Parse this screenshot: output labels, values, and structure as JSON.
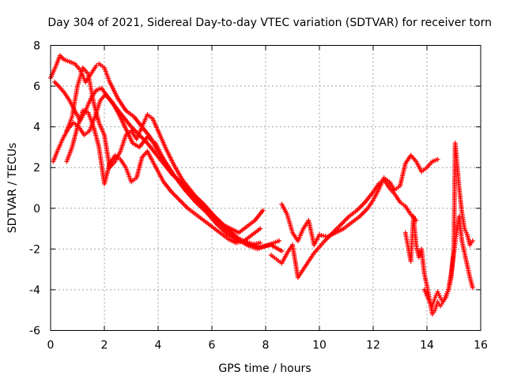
{
  "chart_data": {
    "type": "scatter",
    "title": "Day 304 of 2021, Sidereal Day-to-day VTEC variation (SDTVAR) for receiver torn",
    "xlabel": "GPS time / hours",
    "ylabel": "SDTVAR / TECUs",
    "xlim": [
      0,
      16
    ],
    "ylim": [
      -6,
      8
    ],
    "xticks": [
      "0",
      "2",
      "4",
      "6",
      "8",
      "10",
      "12",
      "14",
      "16"
    ],
    "yticks": [
      "-6",
      "-4",
      "-2",
      "0",
      "2",
      "4",
      "6",
      "8"
    ],
    "xtick_values": [
      0,
      2,
      4,
      6,
      8,
      10,
      12,
      14,
      16
    ],
    "ytick_values": [
      -6,
      -4,
      -2,
      0,
      2,
      4,
      6,
      8
    ],
    "grid": true,
    "marker": "+",
    "color": "#ff0000",
    "series": [
      {
        "name": "track-1",
        "x": [
          0.0,
          0.2,
          0.35,
          0.5,
          0.7,
          0.9,
          1.1,
          1.3,
          1.5,
          1.7,
          1.8,
          2.0,
          2.2,
          2.5,
          2.8,
          3.1,
          3.4,
          3.7,
          4.0,
          4.3,
          4.6,
          5.0,
          5.4,
          5.8,
          6.2,
          6.6,
          7.0,
          7.4,
          7.8,
          8.2,
          8.6
        ],
        "y": [
          6.4,
          7.0,
          7.5,
          7.3,
          7.2,
          7.1,
          6.8,
          6.2,
          6.6,
          7.0,
          7.1,
          6.9,
          6.2,
          5.4,
          4.8,
          4.5,
          4.0,
          3.5,
          2.8,
          2.2,
          1.6,
          1.0,
          0.5,
          -0.1,
          -0.6,
          -1.1,
          -1.5,
          -1.7,
          -1.9,
          -1.8,
          -2.1
        ]
      },
      {
        "name": "track-2",
        "x": [
          0.15,
          0.3,
          0.5,
          0.7,
          0.9,
          1.1,
          1.3,
          1.5,
          1.7,
          1.9,
          2.1,
          2.4,
          2.7,
          3.0,
          3.3,
          3.6,
          3.9,
          4.2,
          4.5,
          4.9,
          5.3,
          5.7,
          6.1,
          6.5,
          6.9,
          7.3,
          7.7,
          8.1,
          8.5
        ],
        "y": [
          6.2,
          6.0,
          5.7,
          5.3,
          4.8,
          4.3,
          4.8,
          5.4,
          5.8,
          5.9,
          5.5,
          5.0,
          4.5,
          4.0,
          3.6,
          3.2,
          2.7,
          2.2,
          1.7,
          1.2,
          0.7,
          0.2,
          -0.4,
          -0.9,
          -1.4,
          -1.8,
          -2.0,
          -1.8,
          -1.6
        ]
      },
      {
        "name": "track-3",
        "x": [
          0.1,
          0.25,
          0.45,
          0.65,
          0.85,
          1.05,
          1.25,
          1.45,
          1.65,
          1.85,
          2.05,
          2.3,
          2.55,
          2.8,
          3.05,
          3.3,
          3.6,
          3.9,
          4.2,
          4.6,
          5.0,
          5.4,
          5.8,
          6.2,
          6.6,
          7.0,
          7.4,
          7.8
        ],
        "y": [
          2.3,
          2.8,
          3.4,
          3.9,
          4.2,
          4.0,
          3.6,
          3.8,
          4.5,
          5.3,
          5.6,
          5.2,
          4.6,
          3.9,
          3.2,
          3.0,
          3.5,
          3.2,
          2.4,
          1.6,
          0.9,
          0.3,
          -0.2,
          -0.8,
          -1.3,
          -1.6,
          -1.8,
          -1.7
        ]
      },
      {
        "name": "track-4",
        "x": [
          0.6,
          0.8,
          1.0,
          1.2,
          1.4,
          1.6,
          1.8,
          2.0,
          2.2,
          2.4,
          2.6,
          2.8,
          3.0,
          3.2,
          3.4,
          3.6,
          3.8,
          4.0,
          4.3,
          4.6,
          4.9,
          5.2,
          5.5,
          5.8,
          6.1,
          6.4,
          6.7,
          7.0,
          7.3,
          7.6,
          7.9
        ],
        "y": [
          3.8,
          4.5,
          6.0,
          6.9,
          6.6,
          5.2,
          4.2,
          3.6,
          2.0,
          2.3,
          2.8,
          3.6,
          3.8,
          3.4,
          4.0,
          4.6,
          4.4,
          3.8,
          2.9,
          2.1,
          1.4,
          0.9,
          0.4,
          0.0,
          -0.4,
          -0.8,
          -1.0,
          -1.2,
          -0.9,
          -0.6,
          -0.1
        ]
      },
      {
        "name": "track-5",
        "x": [
          0.6,
          0.8,
          1.0,
          1.2,
          1.4,
          1.6,
          1.8,
          2.0,
          2.2,
          2.4,
          2.6,
          2.8,
          3.0,
          3.2,
          3.4,
          3.6,
          3.8,
          4.0,
          4.2,
          4.5,
          4.8,
          5.1,
          5.4,
          5.7,
          6.0,
          6.3,
          6.6,
          6.9,
          7.2,
          7.5,
          7.8
        ],
        "y": [
          2.3,
          3.0,
          4.0,
          4.8,
          4.7,
          4.0,
          3.0,
          1.2,
          2.2,
          2.6,
          2.4,
          2.0,
          1.3,
          1.5,
          2.5,
          2.8,
          2.3,
          1.8,
          1.3,
          0.8,
          0.4,
          0.0,
          -0.3,
          -0.6,
          -0.9,
          -1.2,
          -1.5,
          -1.7,
          -1.6,
          -1.3,
          -1.0
        ]
      },
      {
        "name": "track-6",
        "x": [
          8.2,
          8.4,
          8.6,
          8.8,
          9.0,
          9.2,
          9.4,
          9.6,
          9.8,
          10.0,
          10.2,
          10.5,
          10.8,
          11.1,
          11.4,
          11.7,
          12.0,
          12.2,
          12.4,
          12.6,
          12.8,
          13.0,
          13.2,
          13.4,
          13.6
        ],
        "y": [
          -2.3,
          -2.5,
          -2.7,
          -2.2,
          -1.8,
          -3.4,
          -3.0,
          -2.6,
          -2.2,
          -1.9,
          -1.6,
          -1.2,
          -0.8,
          -0.4,
          -0.1,
          0.3,
          0.8,
          1.2,
          1.4,
          1.0,
          0.7,
          0.3,
          0.1,
          -0.3,
          -0.6
        ]
      },
      {
        "name": "track-7",
        "x": [
          8.6,
          8.8,
          9.0,
          9.2,
          9.4,
          9.6,
          9.8,
          10.0,
          10.3,
          10.6,
          10.9,
          11.2,
          11.5,
          11.8,
          12.0,
          12.2,
          12.4,
          12.6,
          12.8,
          13.0,
          13.2,
          13.4,
          13.6,
          13.8,
          14.0,
          14.2,
          14.4
        ],
        "y": [
          0.2,
          -0.3,
          -1.2,
          -1.6,
          -1.0,
          -0.6,
          -1.8,
          -1.3,
          -1.4,
          -1.2,
          -1.0,
          -0.7,
          -0.4,
          0.0,
          0.4,
          0.9,
          1.5,
          1.3,
          0.9,
          1.1,
          2.2,
          2.6,
          2.3,
          1.8,
          2.0,
          2.3,
          2.4
        ]
      },
      {
        "name": "track-8",
        "x": [
          13.2,
          13.4,
          13.5,
          13.6,
          13.7,
          13.8,
          13.9,
          14.0,
          14.1,
          14.2,
          14.3,
          14.4,
          14.5,
          14.6,
          14.7,
          14.8,
          14.9,
          15.0,
          15.1,
          15.2,
          15.3,
          15.4,
          15.5,
          15.6,
          15.7
        ],
        "y": [
          -1.2,
          -2.6,
          -0.4,
          -1.8,
          -2.4,
          -2.0,
          -3.2,
          -3.8,
          -4.5,
          -5.2,
          -5.0,
          -4.6,
          -4.8,
          -4.6,
          -4.4,
          -4.0,
          -3.2,
          -2.2,
          -1.2,
          -0.4,
          -1.6,
          -2.2,
          -2.8,
          -3.4,
          -3.9
        ]
      },
      {
        "name": "track-9",
        "x": [
          13.9,
          14.0,
          14.1,
          14.2,
          14.3,
          14.4,
          14.5,
          14.6,
          14.7,
          14.8,
          14.9,
          15.0,
          15.05,
          15.1,
          15.2,
          15.3,
          15.4,
          15.5,
          15.6,
          15.7
        ],
        "y": [
          -4.0,
          -4.3,
          -4.6,
          -4.8,
          -4.4,
          -4.1,
          -4.4,
          -4.6,
          -4.3,
          -4.0,
          -3.4,
          -2.0,
          3.2,
          2.5,
          1.0,
          -0.2,
          -1.0,
          -1.3,
          -1.8,
          -1.6
        ]
      }
    ]
  }
}
